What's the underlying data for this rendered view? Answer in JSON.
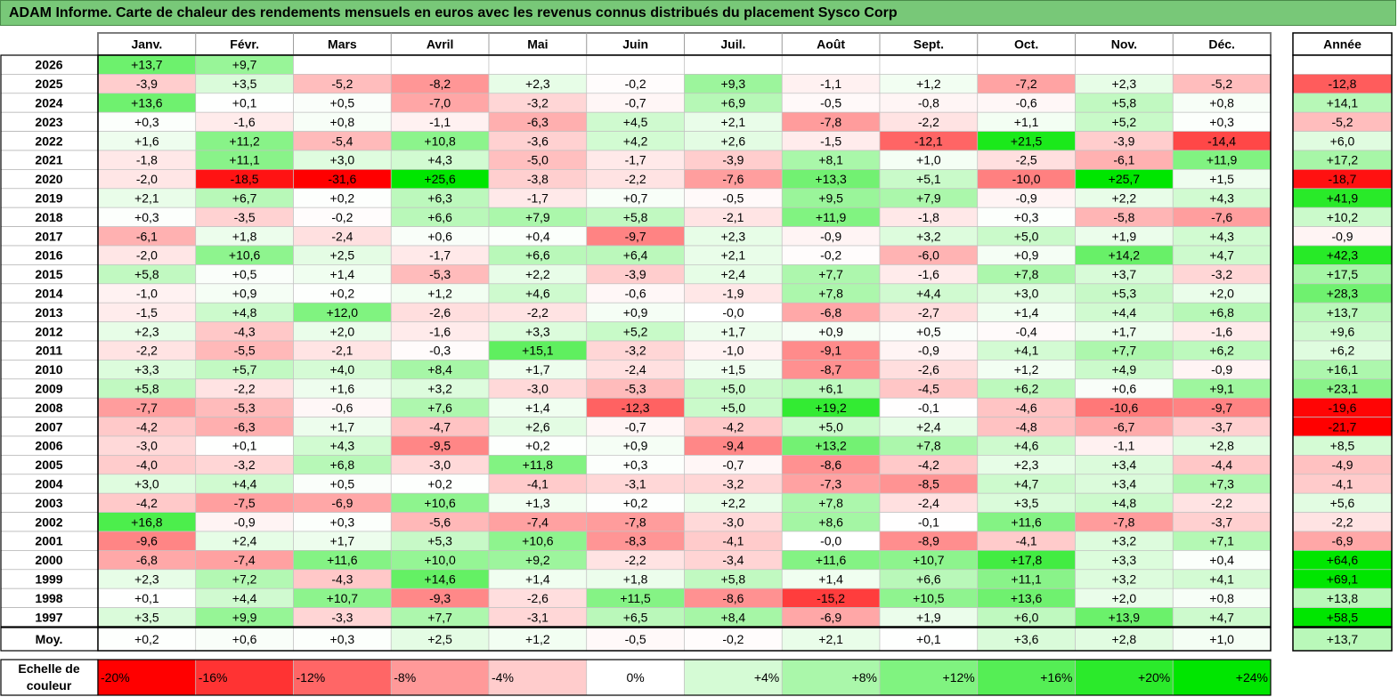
{
  "title": "ADAM Informe. Carte de chaleur des rendements mensuels en euros avec les revenus connus distribués du placement Sysco Corp",
  "chart_data": {
    "type": "heatmap",
    "title": "ADAM Informe. Carte de chaleur des rendements mensuels en euros avec les revenus connus distribués du placement Sysco Corp",
    "months": [
      "Janv.",
      "Févr.",
      "Mars",
      "Avril",
      "Mai",
      "Juin",
      "Juil.",
      "Août",
      "Sept.",
      "Oct.",
      "Nov.",
      "Déc."
    ],
    "year_header": "Année",
    "rows": [
      {
        "year": "2026",
        "values": [
          "+13,7",
          "+9,7",
          "",
          "",
          "",
          "",
          "",
          "",
          "",
          "",
          "",
          ""
        ],
        "annual": ""
      },
      {
        "year": "2025",
        "values": [
          "-3,9",
          "+3,5",
          "-5,2",
          "-8,2",
          "+2,3",
          "-0,2",
          "+9,3",
          "-1,1",
          "+1,2",
          "-7,2",
          "+2,3",
          "-5,2"
        ],
        "annual": "-12,8"
      },
      {
        "year": "2024",
        "values": [
          "+13,6",
          "+0,1",
          "+0,5",
          "-7,0",
          "-3,2",
          "-0,7",
          "+6,9",
          "-0,5",
          "-0,8",
          "-0,6",
          "+5,8",
          "+0,8"
        ],
        "annual": "+14,1"
      },
      {
        "year": "2023",
        "values": [
          "+0,3",
          "-1,6",
          "+0,8",
          "-1,1",
          "-6,3",
          "+4,5",
          "+2,1",
          "-7,8",
          "-2,2",
          "+1,1",
          "+5,2",
          "+0,3"
        ],
        "annual": "-5,2"
      },
      {
        "year": "2022",
        "values": [
          "+1,6",
          "+11,2",
          "-5,4",
          "+10,8",
          "-3,6",
          "+4,2",
          "+2,6",
          "-1,5",
          "-12,1",
          "+21,5",
          "-3,9",
          "-14,4"
        ],
        "annual": "+6,0"
      },
      {
        "year": "2021",
        "values": [
          "-1,8",
          "+11,1",
          "+3,0",
          "+4,3",
          "-5,0",
          "-1,7",
          "-3,9",
          "+8,1",
          "+1,0",
          "-2,5",
          "-6,1",
          "+11,9"
        ],
        "annual": "+17,2"
      },
      {
        "year": "2020",
        "values": [
          "-2,0",
          "-18,5",
          "-31,6",
          "+25,6",
          "-3,8",
          "-2,2",
          "-7,6",
          "+13,3",
          "+5,1",
          "-10,0",
          "+25,7",
          "+1,5"
        ],
        "annual": "-18,7"
      },
      {
        "year": "2019",
        "values": [
          "+2,1",
          "+6,7",
          "+0,2",
          "+6,3",
          "-1,7",
          "+0,7",
          "-0,5",
          "+9,5",
          "+7,9",
          "-0,9",
          "+2,2",
          "+4,3"
        ],
        "annual": "+41,9"
      },
      {
        "year": "2018",
        "values": [
          "+0,3",
          "-3,5",
          "-0,2",
          "+6,6",
          "+7,9",
          "+5,8",
          "-2,1",
          "+11,9",
          "-1,8",
          "+0,3",
          "-5,8",
          "-7,6"
        ],
        "annual": "+10,2"
      },
      {
        "year": "2017",
        "values": [
          "-6,1",
          "+1,8",
          "-2,4",
          "+0,6",
          "+0,4",
          "-9,7",
          "+2,3",
          "-0,9",
          "+3,2",
          "+5,0",
          "+1,9",
          "+4,3"
        ],
        "annual": "-0,9"
      },
      {
        "year": "2016",
        "values": [
          "-2,0",
          "+10,6",
          "+2,5",
          "-1,7",
          "+6,6",
          "+6,4",
          "+2,1",
          "-0,2",
          "-6,0",
          "+0,9",
          "+14,2",
          "+4,7"
        ],
        "annual": "+42,3"
      },
      {
        "year": "2015",
        "values": [
          "+5,8",
          "+0,5",
          "+1,4",
          "-5,3",
          "+2,2",
          "-3,9",
          "+2,4",
          "+7,7",
          "-1,6",
          "+7,8",
          "+3,7",
          "-3,2"
        ],
        "annual": "+17,5"
      },
      {
        "year": "2014",
        "values": [
          "-1,0",
          "+0,9",
          "+0,2",
          "+1,2",
          "+4,6",
          "-0,6",
          "-1,9",
          "+7,8",
          "+4,4",
          "+3,0",
          "+5,3",
          "+2,0"
        ],
        "annual": "+28,3"
      },
      {
        "year": "2013",
        "values": [
          "-1,5",
          "+4,8",
          "+12,0",
          "-2,6",
          "-2,2",
          "+0,9",
          "-0,0",
          "-6,8",
          "-2,7",
          "+1,4",
          "+4,4",
          "+6,8"
        ],
        "annual": "+13,7"
      },
      {
        "year": "2012",
        "values": [
          "+2,3",
          "-4,3",
          "+2,0",
          "-1,6",
          "+3,3",
          "+5,2",
          "+1,7",
          "+0,9",
          "+0,5",
          "-0,4",
          "+1,7",
          "-1,6"
        ],
        "annual": "+9,6"
      },
      {
        "year": "2011",
        "values": [
          "-2,2",
          "-5,5",
          "-2,1",
          "-0,3",
          "+15,1",
          "-3,2",
          "-1,0",
          "-9,1",
          "-0,9",
          "+4,1",
          "+7,7",
          "+6,2"
        ],
        "annual": "+6,2"
      },
      {
        "year": "2010",
        "values": [
          "+3,3",
          "+5,7",
          "+4,0",
          "+8,4",
          "+1,7",
          "-2,4",
          "+1,5",
          "-8,7",
          "-2,6",
          "+1,2",
          "+4,9",
          "-0,9"
        ],
        "annual": "+16,1"
      },
      {
        "year": "2009",
        "values": [
          "+5,8",
          "-2,2",
          "+1,6",
          "+3,2",
          "-3,0",
          "-5,3",
          "+5,0",
          "+6,1",
          "-4,5",
          "+6,2",
          "+0,6",
          "+9,1"
        ],
        "annual": "+23,1"
      },
      {
        "year": "2008",
        "values": [
          "-7,7",
          "-5,3",
          "-0,6",
          "+7,6",
          "+1,4",
          "-12,3",
          "+5,0",
          "+19,2",
          "-0,1",
          "-4,6",
          "-10,6",
          "-9,7"
        ],
        "annual": "-19,6"
      },
      {
        "year": "2007",
        "values": [
          "-4,2",
          "-6,3",
          "+1,7",
          "-4,7",
          "+2,6",
          "-0,7",
          "-4,2",
          "+5,0",
          "+2,4",
          "-4,8",
          "-6,7",
          "-3,7"
        ],
        "annual": "-21,7"
      },
      {
        "year": "2006",
        "values": [
          "-3,0",
          "+0,1",
          "+4,3",
          "-9,5",
          "+0,2",
          "+0,9",
          "-9,4",
          "+13,2",
          "+7,8",
          "+4,6",
          "-1,1",
          "+2,8"
        ],
        "annual": "+8,5"
      },
      {
        "year": "2005",
        "values": [
          "-4,0",
          "-3,2",
          "+6,8",
          "-3,0",
          "+11,8",
          "+0,3",
          "-0,7",
          "-8,6",
          "-4,2",
          "+2,3",
          "+3,4",
          "-4,4"
        ],
        "annual": "-4,9"
      },
      {
        "year": "2004",
        "values": [
          "+3,0",
          "+4,4",
          "+0,5",
          "+0,2",
          "-4,1",
          "-3,1",
          "-3,2",
          "-7,3",
          "-8,5",
          "+4,7",
          "+3,4",
          "+7,3"
        ],
        "annual": "-4,1"
      },
      {
        "year": "2003",
        "values": [
          "-4,2",
          "-7,5",
          "-6,9",
          "+10,6",
          "+1,3",
          "+0,2",
          "+2,2",
          "+7,8",
          "-2,4",
          "+3,5",
          "+4,8",
          "-2,2"
        ],
        "annual": "+5,6"
      },
      {
        "year": "2002",
        "values": [
          "+16,8",
          "-0,9",
          "+0,3",
          "-5,6",
          "-7,4",
          "-7,8",
          "-3,0",
          "+8,6",
          "-0,1",
          "+11,6",
          "-7,8",
          "-3,7"
        ],
        "annual": "-2,2"
      },
      {
        "year": "2001",
        "values": [
          "-9,6",
          "+2,4",
          "+1,7",
          "+5,3",
          "+10,6",
          "-8,3",
          "-4,1",
          "-0,0",
          "-8,9",
          "-4,1",
          "+3,2",
          "+7,1"
        ],
        "annual": "-6,9"
      },
      {
        "year": "2000",
        "values": [
          "-6,8",
          "-7,4",
          "+11,6",
          "+10,0",
          "+9,2",
          "-2,2",
          "-3,4",
          "+11,6",
          "+10,7",
          "+17,8",
          "+3,3",
          "+0,4"
        ],
        "annual": "+64,6"
      },
      {
        "year": "1999",
        "values": [
          "+2,3",
          "+7,2",
          "-4,3",
          "+14,6",
          "+1,4",
          "+1,8",
          "+5,8",
          "+1,4",
          "+6,6",
          "+11,1",
          "+3,2",
          "+4,1"
        ],
        "annual": "+69,1"
      },
      {
        "year": "1998",
        "values": [
          "+0,1",
          "+4,4",
          "+10,7",
          "-9,3",
          "-2,6",
          "+11,5",
          "-8,6",
          "-15,2",
          "+10,5",
          "+13,6",
          "+2,0",
          "+0,8"
        ],
        "annual": "+13,8"
      },
      {
        "year": "1997",
        "values": [
          "+3,5",
          "+9,9",
          "-3,3",
          "+7,7",
          "-3,1",
          "+6,5",
          "+8,4",
          "-6,9",
          "+1,9",
          "+6,0",
          "+13,9",
          "+4,7"
        ],
        "annual": "+58,5"
      }
    ],
    "average": {
      "label": "Moy.",
      "values": [
        "+0,2",
        "+0,6",
        "+0,3",
        "+2,5",
        "+1,2",
        "-0,5",
        "-0,2",
        "+2,1",
        "+0,1",
        "+3,6",
        "+2,8",
        "+1,0"
      ],
      "annual": "+13,7"
    },
    "scale": {
      "label_line1": "Echelle de",
      "label_line2": "couleur",
      "stops": [
        "-20%",
        "-16%",
        "-12%",
        "-8%",
        "-4%",
        "0%",
        "+4%",
        "+8%",
        "+12%",
        "+16%",
        "+20%",
        "+24%"
      ],
      "values": [
        -20,
        -16,
        -12,
        -8,
        -4,
        0,
        4,
        8,
        12,
        16,
        20,
        24
      ]
    },
    "colors": {
      "negative_max": "#ff0000",
      "neutral": "#ffffff",
      "positive_max": "#00e600"
    }
  }
}
